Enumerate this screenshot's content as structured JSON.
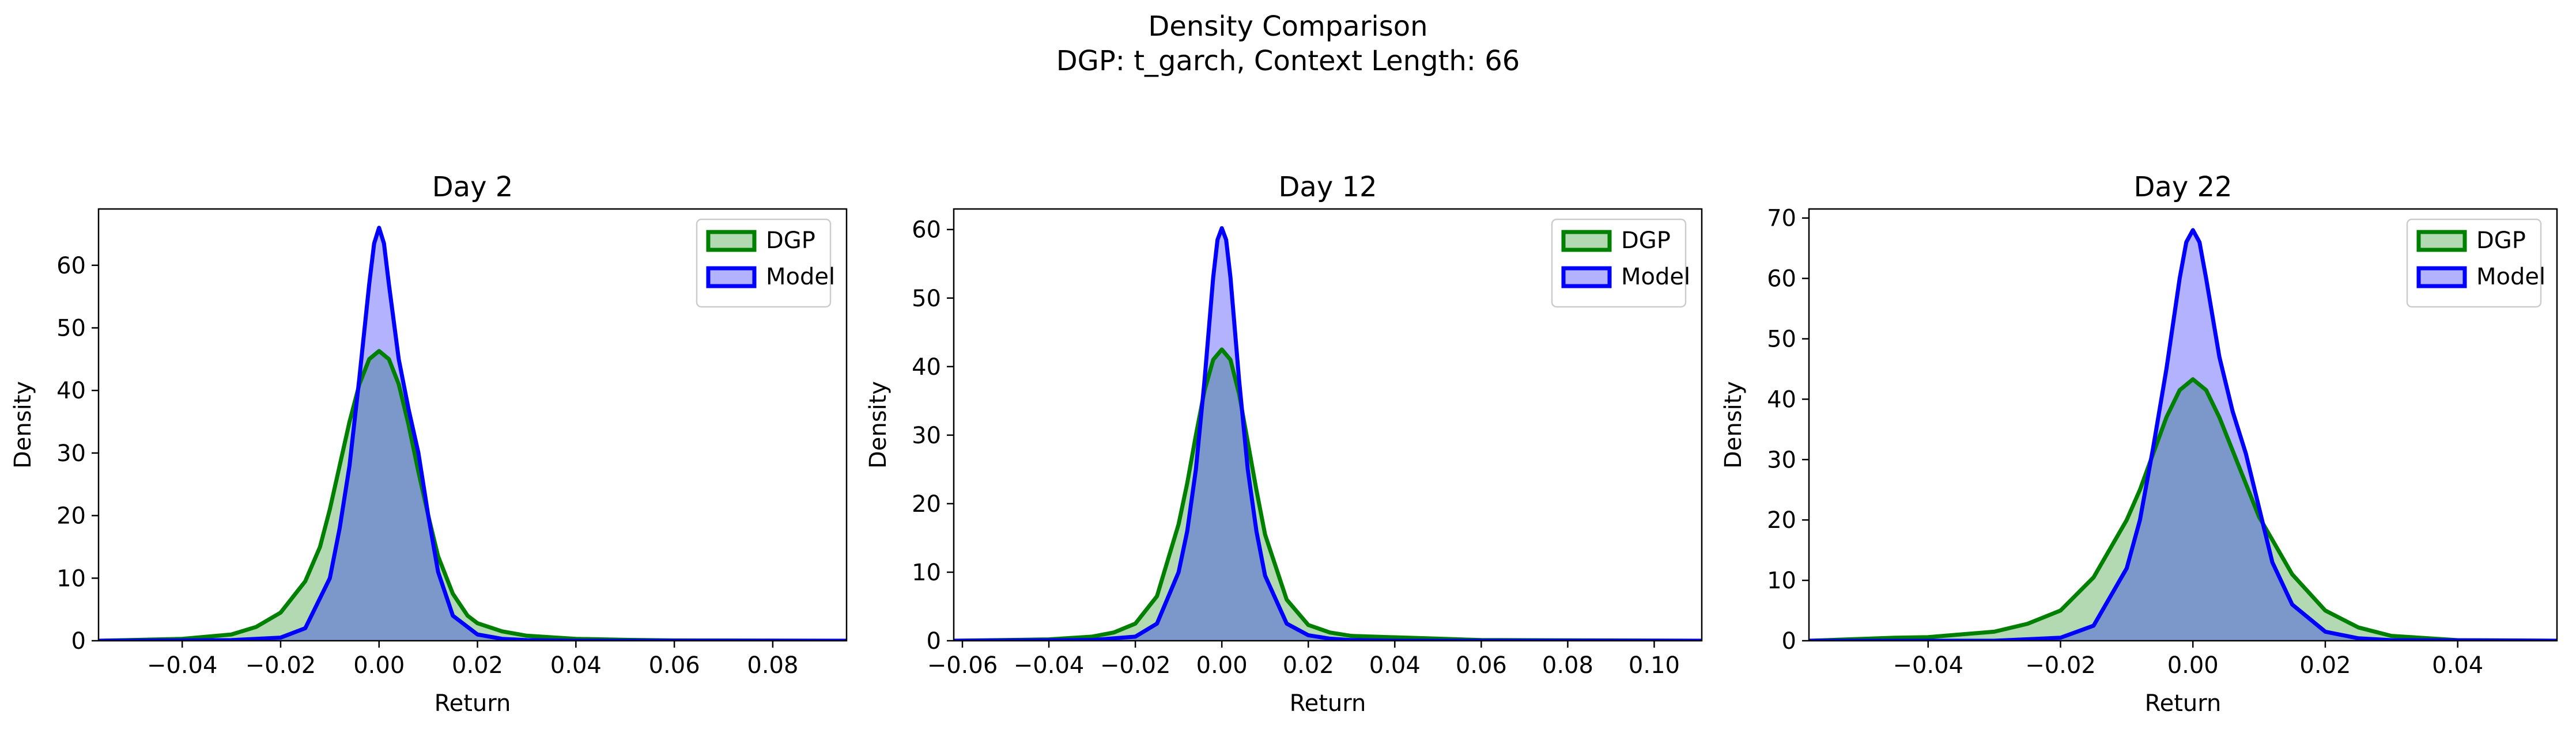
{
  "figure": {
    "suptitle_line1": "Density Comparison",
    "suptitle_line2": "DGP: t_garch, Context Length: 66"
  },
  "colors": {
    "dgp_line": "#008000",
    "dgp_fill": "#008000",
    "model_line": "#0000ff",
    "model_fill": "#0000ff"
  },
  "chart_data": [
    {
      "type": "area",
      "title": "Day 2",
      "xlabel": "Return",
      "ylabel": "Density",
      "xlim": [
        -0.057,
        0.095
      ],
      "ylim": [
        0,
        69
      ],
      "xticks": [
        -0.04,
        -0.02,
        0.0,
        0.02,
        0.04,
        0.06,
        0.08
      ],
      "xtick_labels": [
        "−0.04",
        "−0.02",
        "0.00",
        "0.02",
        "0.04",
        "0.06",
        "0.08"
      ],
      "yticks": [
        0,
        10,
        20,
        30,
        40,
        50,
        60
      ],
      "ytick_labels": [
        "0",
        "10",
        "20",
        "30",
        "40",
        "50",
        "60"
      ],
      "legend": "top-right",
      "series": [
        {
          "name": "DGP",
          "x": [
            -0.057,
            -0.04,
            -0.03,
            -0.025,
            -0.02,
            -0.015,
            -0.012,
            -0.01,
            -0.008,
            -0.006,
            -0.004,
            -0.002,
            0.0,
            0.002,
            0.004,
            0.006,
            0.008,
            0.01,
            0.012,
            0.015,
            0.018,
            0.02,
            0.025,
            0.03,
            0.04,
            0.05,
            0.06,
            0.095
          ],
          "values": [
            0.0,
            0.3,
            1.0,
            2.2,
            4.5,
            9.5,
            15.0,
            21.0,
            28.0,
            35.0,
            41.0,
            45.0,
            46.3,
            45.0,
            41.0,
            34.5,
            27.0,
            20.0,
            13.5,
            7.5,
            4.0,
            2.8,
            1.5,
            0.8,
            0.3,
            0.15,
            0.05,
            0.0
          ]
        },
        {
          "name": "Model",
          "x": [
            -0.057,
            -0.03,
            -0.02,
            -0.015,
            -0.01,
            -0.008,
            -0.006,
            -0.004,
            -0.002,
            -0.001,
            0.0,
            0.001,
            0.002,
            0.004,
            0.006,
            0.008,
            0.01,
            0.012,
            0.015,
            0.02,
            0.025,
            0.03,
            0.04,
            0.048,
            0.095
          ],
          "values": [
            0.0,
            0.1,
            0.5,
            2.0,
            10.0,
            18.0,
            28.0,
            42.0,
            57.0,
            63.5,
            66.0,
            63.5,
            57.0,
            45.0,
            37.0,
            30.0,
            20.0,
            11.0,
            4.0,
            1.0,
            0.3,
            0.1,
            0.0,
            0.0,
            0.0
          ]
        }
      ]
    },
    {
      "type": "area",
      "title": "Day 12",
      "xlabel": "Return",
      "ylabel": "Density",
      "xlim": [
        -0.062,
        0.111
      ],
      "ylim": [
        0,
        63
      ],
      "xticks": [
        -0.06,
        -0.04,
        -0.02,
        0.0,
        0.02,
        0.04,
        0.06,
        0.08,
        0.1
      ],
      "xtick_labels": [
        "−0.06",
        "−0.04",
        "−0.02",
        "0.00",
        "0.02",
        "0.04",
        "0.06",
        "0.08",
        "0.10"
      ],
      "yticks": [
        0,
        10,
        20,
        30,
        40,
        50,
        60
      ],
      "ytick_labels": [
        "0",
        "10",
        "20",
        "30",
        "40",
        "50",
        "60"
      ],
      "legend": "top-right",
      "series": [
        {
          "name": "DGP",
          "x": [
            -0.062,
            -0.04,
            -0.03,
            -0.025,
            -0.02,
            -0.015,
            -0.01,
            -0.008,
            -0.006,
            -0.004,
            -0.002,
            0.0,
            0.002,
            0.004,
            0.006,
            0.008,
            0.01,
            0.015,
            0.02,
            0.025,
            0.03,
            0.04,
            0.05,
            0.06,
            0.111
          ],
          "values": [
            0.0,
            0.2,
            0.6,
            1.2,
            2.5,
            6.5,
            17.0,
            23.0,
            30.0,
            36.5,
            41.0,
            42.5,
            41.0,
            36.0,
            29.0,
            22.0,
            15.5,
            6.0,
            2.3,
            1.2,
            0.7,
            0.5,
            0.3,
            0.1,
            0.0
          ]
        },
        {
          "name": "Model",
          "x": [
            -0.062,
            -0.03,
            -0.02,
            -0.015,
            -0.01,
            -0.008,
            -0.006,
            -0.004,
            -0.002,
            -0.001,
            0.0,
            0.001,
            0.002,
            0.004,
            0.006,
            0.008,
            0.01,
            0.015,
            0.02,
            0.025,
            0.03,
            0.04,
            0.111
          ],
          "values": [
            0.0,
            0.1,
            0.6,
            2.5,
            10.0,
            16.0,
            25.0,
            38.0,
            53.0,
            58.5,
            60.2,
            58.5,
            53.0,
            38.0,
            25.0,
            16.0,
            9.5,
            2.5,
            0.8,
            0.3,
            0.1,
            0.0,
            0.0
          ]
        }
      ]
    },
    {
      "type": "area",
      "title": "Day 22",
      "xlabel": "Return",
      "ylabel": "Density",
      "xlim": [
        -0.058,
        0.055
      ],
      "ylim": [
        0,
        71.5
      ],
      "xticks": [
        -0.04,
        -0.02,
        0.0,
        0.02,
        0.04
      ],
      "xtick_labels": [
        "−0.04",
        "−0.02",
        "0.00",
        "0.02",
        "0.04"
      ],
      "yticks": [
        0,
        10,
        20,
        30,
        40,
        50,
        60,
        70
      ],
      "ytick_labels": [
        "0",
        "10",
        "20",
        "30",
        "40",
        "50",
        "60",
        "70"
      ],
      "legend": "top-right",
      "series": [
        {
          "name": "DGP",
          "x": [
            -0.058,
            -0.045,
            -0.04,
            -0.03,
            -0.025,
            -0.02,
            -0.015,
            -0.01,
            -0.008,
            -0.006,
            -0.004,
            -0.002,
            0.0,
            0.002,
            0.004,
            0.006,
            0.008,
            0.01,
            0.015,
            0.02,
            0.025,
            0.03,
            0.04,
            0.055
          ],
          "values": [
            0.0,
            0.5,
            0.6,
            1.5,
            2.8,
            5.0,
            10.5,
            20.0,
            25.0,
            31.0,
            37.0,
            41.5,
            43.3,
            41.5,
            37.0,
            31.5,
            26.0,
            20.5,
            11.0,
            5.0,
            2.2,
            0.8,
            0.1,
            0.0
          ]
        },
        {
          "name": "Model",
          "x": [
            -0.058,
            -0.03,
            -0.02,
            -0.015,
            -0.01,
            -0.008,
            -0.006,
            -0.004,
            -0.002,
            -0.001,
            0.0,
            0.001,
            0.002,
            0.004,
            0.006,
            0.008,
            0.01,
            0.012,
            0.015,
            0.02,
            0.025,
            0.03,
            0.055
          ],
          "values": [
            0.0,
            0.0,
            0.5,
            2.5,
            12.0,
            20.0,
            32.0,
            45.0,
            60.0,
            66.0,
            68.0,
            66.0,
            60.0,
            47.0,
            38.0,
            31.0,
            22.0,
            13.0,
            6.0,
            1.5,
            0.4,
            0.1,
            0.0
          ]
        }
      ]
    }
  ]
}
